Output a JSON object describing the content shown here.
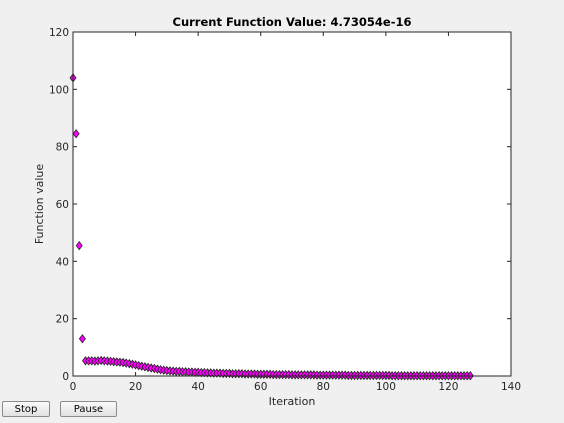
{
  "controls": {
    "stop_label": "Stop",
    "pause_label": "Pause"
  },
  "colors": {
    "marker_fill": "#ff00ff",
    "marker_stroke": "#202020",
    "axes_background": "#ffffff",
    "figure_background": "#f0f0f0"
  },
  "chart_data": {
    "type": "scatter",
    "title": "Current Function Value: 4.73054e-16",
    "xlabel": "Iteration",
    "ylabel": "Function value",
    "xlim": [
      0,
      140
    ],
    "ylim": [
      0,
      120
    ],
    "xticks": [
      0,
      20,
      40,
      60,
      80,
      100,
      120,
      140
    ],
    "yticks": [
      0,
      20,
      40,
      60,
      80,
      100,
      120
    ],
    "grid": false,
    "marker": "diamond",
    "series": [
      {
        "x": [
          0,
          1,
          2,
          3,
          4,
          5,
          6,
          7,
          8,
          9,
          10,
          11,
          12,
          13,
          14,
          15,
          16,
          17,
          18,
          19,
          20,
          21,
          22,
          23,
          24,
          25,
          26,
          27,
          28,
          29,
          30,
          31,
          32,
          33,
          34,
          35,
          36,
          37,
          38,
          39,
          40,
          41,
          42,
          43,
          44,
          45,
          46,
          47,
          48,
          49,
          50,
          51,
          52,
          53,
          54,
          55,
          56,
          57,
          58,
          59,
          60,
          61,
          62,
          63,
          64,
          65,
          66,
          67,
          68,
          69,
          70,
          71,
          72,
          73,
          74,
          75,
          76,
          77,
          78,
          79,
          80,
          81,
          82,
          83,
          84,
          85,
          86,
          87,
          88,
          89,
          90,
          91,
          92,
          93,
          94,
          95,
          96,
          97,
          98,
          99,
          100,
          101,
          102,
          103,
          104,
          105,
          106,
          107,
          108,
          109,
          110,
          111,
          112,
          113,
          114,
          115,
          116,
          117,
          118,
          119,
          120,
          121,
          122,
          123,
          124,
          125,
          126,
          127
        ],
        "y": [
          104,
          84.5,
          45.5,
          13,
          5.3,
          5.3,
          5.3,
          5.2,
          5.3,
          5.4,
          5.3,
          5.2,
          5.1,
          5.0,
          4.9,
          4.8,
          4.7,
          4.5,
          4.3,
          4.1,
          3.9,
          3.6,
          3.4,
          3.2,
          3.0,
          2.8,
          2.6,
          2.4,
          2.2,
          2.0,
          1.9,
          1.8,
          1.7,
          1.6,
          1.6,
          1.5,
          1.5,
          1.4,
          1.4,
          1.3,
          1.3,
          1.2,
          1.2,
          1.1,
          1.1,
          1.0,
          1.0,
          1.0,
          0.9,
          0.9,
          0.9,
          0.8,
          0.8,
          0.8,
          0.8,
          0.7,
          0.7,
          0.7,
          0.7,
          0.6,
          0.6,
          0.6,
          0.6,
          0.6,
          0.5,
          0.5,
          0.5,
          0.5,
          0.5,
          0.5,
          0.4,
          0.4,
          0.4,
          0.4,
          0.4,
          0.4,
          0.4,
          0.4,
          0.3,
          0.3,
          0.3,
          0.3,
          0.3,
          0.3,
          0.3,
          0.3,
          0.3,
          0.3,
          0.2,
          0.2,
          0.2,
          0.2,
          0.2,
          0.2,
          0.2,
          0.2,
          0.2,
          0.2,
          0.2,
          0.2,
          0.2,
          0.2,
          0.1,
          0.1,
          0.1,
          0.1,
          0.1,
          0.1,
          0.1,
          0.1,
          0.1,
          0.1,
          0.1,
          0.1,
          0.1,
          0.1,
          0.1,
          0.1,
          0.1,
          0.1,
          0.1,
          0.1,
          0.1,
          0.1,
          0.1,
          0.1,
          0.1,
          0.1
        ]
      }
    ]
  }
}
